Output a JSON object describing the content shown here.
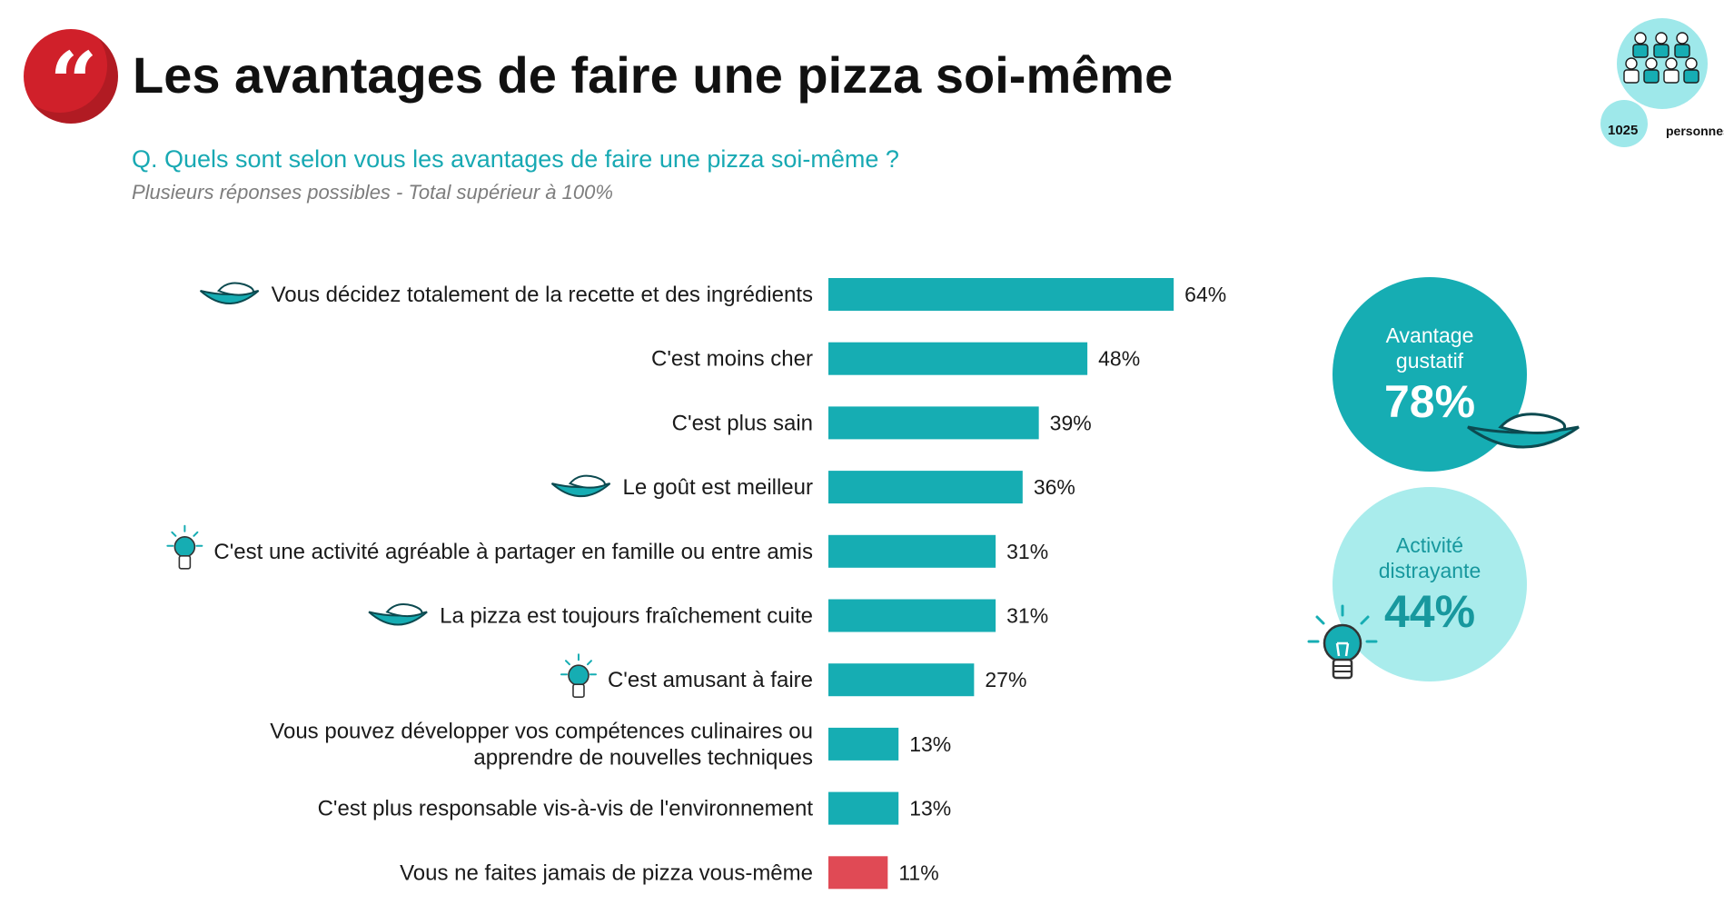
{
  "header": {
    "quote_mark": "“",
    "title": "Les avantages de faire une pizza soi-même",
    "question": "Q. Quels sont selon vous les avantages de faire une pizza soi-même ?",
    "note": "Plusieurs réponses possibles - Total supérieur à 100%"
  },
  "sample": {
    "count": "1025",
    "unit": "personnes",
    "icon": "people-group-icon"
  },
  "colors": {
    "bar": "#16adb3",
    "bar_highlight": "#e04a55",
    "accent": "#18a9b3",
    "brand_red": "#d0202a"
  },
  "chart_data": {
    "type": "bar",
    "orientation": "horizontal",
    "xlim": [
      0,
      100
    ],
    "categories": [
      "Vous décidez totalement de la recette et des ingrédients",
      "C'est moins cher",
      "C'est plus sain",
      "Le goût est meilleur",
      "C'est une activité agréable à partager en famille ou entre amis",
      "La pizza est toujours fraîchement cuite",
      "C'est amusant à faire",
      "Vous pouvez développer vos compétences culinaires ou apprendre de nouvelles techniques",
      "C'est plus responsable vis-à-vis de l'environnement",
      "Vous ne faites jamais de pizza vous-même"
    ],
    "label_lines": [
      [
        "Vous décidez totalement de la recette et des ingrédients"
      ],
      [
        "C'est moins cher"
      ],
      [
        "C'est plus sain"
      ],
      [
        "Le goût est meilleur"
      ],
      [
        "C'est une activité agréable à partager en famille ou entre amis"
      ],
      [
        "La pizza est toujours fraîchement cuite"
      ],
      [
        "C'est amusant à faire"
      ],
      [
        "Vous pouvez développer vos compétences culinaires ou",
        "apprendre de nouvelles techniques"
      ],
      [
        "C'est plus responsable vis-à-vis de l'environnement"
      ],
      [
        "Vous ne faites jamais de pizza vous-même"
      ]
    ],
    "values": [
      64,
      48,
      39,
      36,
      31,
      31,
      27,
      13,
      13,
      11
    ],
    "value_labels": [
      "64%",
      "48%",
      "39%",
      "36%",
      "31%",
      "31%",
      "27%",
      "13%",
      "13%",
      "11%"
    ],
    "icons": [
      "pizza-icon",
      "",
      "",
      "pizza-icon",
      "lightbulb-icon",
      "pizza-icon",
      "lightbulb-icon",
      "",
      "",
      ""
    ],
    "highlight_index": 9
  },
  "summary": {
    "taste": {
      "label": "Avantage gustatif",
      "value": "78%",
      "icon": "pizza-icon"
    },
    "fun": {
      "label": "Activité distrayante",
      "value": "44%",
      "icon": "lightbulb-icon"
    }
  }
}
